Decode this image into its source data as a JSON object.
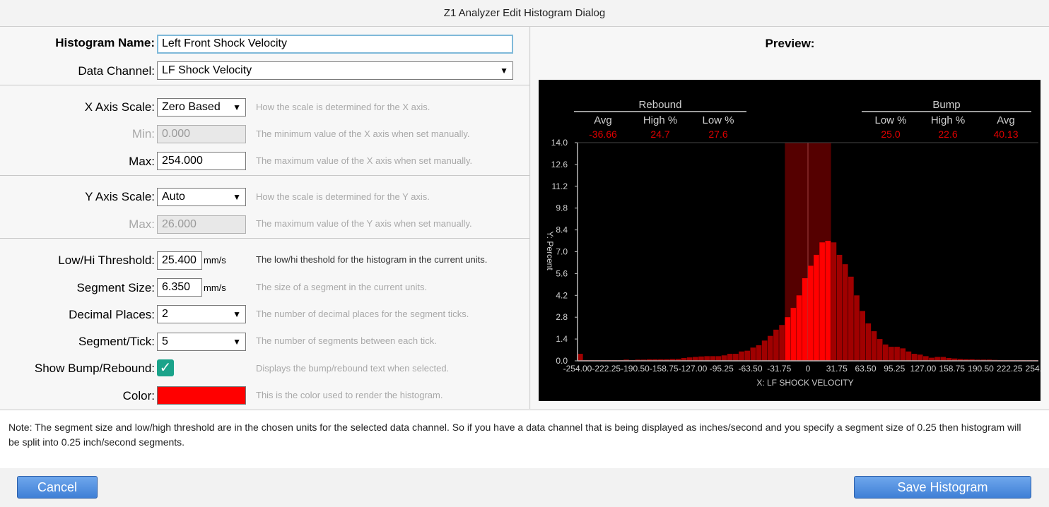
{
  "window": {
    "title": "Z1 Analyzer Edit Histogram Dialog"
  },
  "form": {
    "histogram_name": {
      "label": "Histogram Name:",
      "value": "Left Front Shock Velocity"
    },
    "data_channel": {
      "label": "Data Channel:",
      "value": "LF Shock Velocity"
    },
    "x_axis_scale": {
      "label": "X Axis Scale:",
      "value": "Zero Based",
      "hint": "How the scale is determined for the X axis."
    },
    "x_min": {
      "label": "Min:",
      "value": "0.000",
      "hint": "The minimum value of the X axis when set manually."
    },
    "x_max": {
      "label": "Max:",
      "value": "254.000",
      "hint": "The maximum value of the X axis when set manually."
    },
    "y_axis_scale": {
      "label": "Y Axis Scale:",
      "value": "Auto",
      "hint": "How the scale is determined for the Y axis."
    },
    "y_max": {
      "label": "Max:",
      "value": "26.000",
      "hint": "The maximum value of the Y axis when set manually."
    },
    "threshold": {
      "label": "Low/Hi Threshold:",
      "value": "25.400",
      "unit": "mm/s",
      "hint": "The low/hi theshold for the histogram in the current units."
    },
    "segment_size": {
      "label": "Segment Size:",
      "value": "6.350",
      "unit": "mm/s",
      "hint": "The size of a segment in the current units."
    },
    "decimal_places": {
      "label": "Decimal Places:",
      "value": "2",
      "hint": "The number of decimal places for the segment ticks."
    },
    "segment_tick": {
      "label": "Segment/Tick:",
      "value": "5",
      "hint": "The number of segments between each tick."
    },
    "show_bump_rebound": {
      "label": "Show Bump/Rebound:",
      "checked": true,
      "hint": "Displays the bump/rebound text when selected."
    },
    "color": {
      "label": "Color:",
      "value": "#ff0000",
      "hint": "This is the color used to render the histogram."
    }
  },
  "preview": {
    "title": "Preview:",
    "rebound": {
      "header": "Rebound",
      "cols": [
        "Avg",
        "High %",
        "Low %"
      ],
      "vals": [
        "-36.66",
        "24.7",
        "27.6"
      ]
    },
    "bump": {
      "header": "Bump",
      "cols": [
        "Low %",
        "High %",
        "Avg"
      ],
      "vals": [
        "25.0",
        "22.6",
        "40.13"
      ]
    }
  },
  "chart_data": {
    "type": "bar",
    "xlabel": "X: LF SHOCK VELOCITY",
    "ylabel": "Y: Percent",
    "ylim": [
      0,
      14
    ],
    "xlim": [
      -254,
      254
    ],
    "y_ticks": [
      "0.0",
      "1.4",
      "2.8",
      "4.2",
      "5.6",
      "7.0",
      "8.4",
      "9.8",
      "11.2",
      "12.6",
      "14.0"
    ],
    "x_ticks": [
      "-254.00",
      "-222.25",
      "-190.50",
      "-158.75",
      "-127.00",
      "-95.25",
      "-63.50",
      "-31.75",
      "0",
      "31.75",
      "63.50",
      "95.25",
      "127.00",
      "158.75",
      "190.50",
      "222.25",
      "254.00"
    ],
    "threshold": 25.4,
    "segment_size": 6.35,
    "bin_start": -254,
    "values": [
      0.45,
      0.05,
      0.05,
      0.05,
      0.05,
      0.05,
      0.05,
      0.05,
      0.08,
      0.05,
      0.08,
      0.08,
      0.1,
      0.1,
      0.1,
      0.1,
      0.12,
      0.12,
      0.18,
      0.22,
      0.25,
      0.28,
      0.3,
      0.3,
      0.3,
      0.35,
      0.45,
      0.45,
      0.6,
      0.65,
      0.85,
      1.0,
      1.3,
      1.6,
      2.0,
      2.3,
      2.8,
      3.4,
      4.2,
      5.3,
      6.1,
      6.8,
      7.6,
      7.7,
      7.6,
      6.8,
      6.2,
      5.4,
      4.2,
      3.2,
      2.4,
      1.9,
      1.4,
      1.05,
      0.9,
      0.9,
      0.8,
      0.6,
      0.45,
      0.4,
      0.3,
      0.2,
      0.25,
      0.25,
      0.18,
      0.15,
      0.12,
      0.1,
      0.1,
      0.08,
      0.08,
      0.08,
      0.06,
      0.05,
      0.05,
      0.05,
      0.05,
      0.05,
      0.05,
      0.05
    ],
    "color": "#ff0000"
  },
  "note": {
    "text": "Note: The segment size and low/high threshold are in the chosen units for the selected data channel. So if you have a data channel that is being displayed as inches/second and you specify a segment size of 0.25 then histogram will be split into 0.25 inch/second segments."
  },
  "footer": {
    "cancel_label": "Cancel",
    "save_label": "Save Histogram"
  }
}
